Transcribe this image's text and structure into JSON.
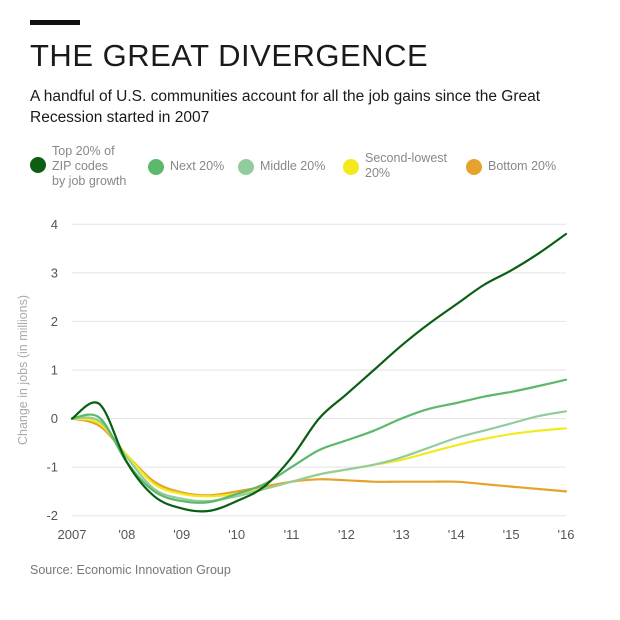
{
  "header": {
    "title": "THE GREAT DIVERGENCE",
    "subtitle": "A handful of U.S. communities account for all the job gains since the Great Recession started in 2007"
  },
  "legend": [
    {
      "label": "Top 20% of ZIP codes by job growth",
      "lines": [
        "Top 20% of",
        "ZIP codes",
        "by job growth"
      ],
      "color": "#0a5f12"
    },
    {
      "label": "Next 20%",
      "lines": [
        "Next 20%"
      ],
      "color": "#5cb86a"
    },
    {
      "label": "Middle 20%",
      "lines": [
        "Middle 20%"
      ],
      "color": "#93cc9c"
    },
    {
      "label": "Second-lowest 20%",
      "lines": [
        "Second-lowest",
        "20%"
      ],
      "color": "#f2ea1d"
    },
    {
      "label": "Bottom 20%",
      "lines": [
        "Bottom 20%"
      ],
      "color": "#e6a32b"
    }
  ],
  "source": "Source: Economic Innovation Group",
  "chart_data": {
    "type": "line",
    "title": "THE GREAT DIVERGENCE",
    "xlabel": "",
    "ylabel": "Change in jobs (in millions)",
    "xlim": [
      2007,
      2016
    ],
    "ylim": [
      -2.5,
      4.5
    ],
    "grid": true,
    "yticks": [
      -2,
      -1,
      0,
      1,
      2,
      3,
      4
    ],
    "ytick_labels": [
      "-2",
      "-1",
      "0",
      "1",
      "2",
      "3",
      "4"
    ],
    "xticks": [
      2007,
      2008,
      2009,
      2010,
      2011,
      2012,
      2013,
      2014,
      2015,
      2016
    ],
    "xtick_labels": [
      "2007",
      "'08",
      "'09",
      "'10",
      "'11",
      "'12",
      "'13",
      "'14",
      "'15",
      "'16"
    ],
    "series": [
      {
        "name": "Top 20% of ZIP codes by job growth",
        "color": "#0a5f12",
        "x": [
          2007,
          2007.5,
          2008,
          2008.5,
          2009,
          2009.5,
          2010,
          2010.5,
          2011,
          2011.5,
          2012,
          2012.5,
          2013,
          2013.5,
          2014,
          2014.5,
          2015,
          2015.5,
          2016
        ],
        "y": [
          0,
          0.3,
          -0.9,
          -1.6,
          -1.85,
          -1.9,
          -1.7,
          -1.4,
          -0.8,
          0.0,
          0.5,
          1.0,
          1.5,
          1.95,
          2.35,
          2.75,
          3.05,
          3.4,
          3.8
        ]
      },
      {
        "name": "Next 20%",
        "color": "#5cb86a",
        "x": [
          2007,
          2007.5,
          2008,
          2008.5,
          2009,
          2009.5,
          2010,
          2010.5,
          2011,
          2011.5,
          2012,
          2012.5,
          2013,
          2013.5,
          2014,
          2014.5,
          2015,
          2015.5,
          2016
        ],
        "y": [
          0,
          0.02,
          -0.9,
          -1.5,
          -1.7,
          -1.72,
          -1.55,
          -1.35,
          -1.0,
          -0.65,
          -0.45,
          -0.25,
          0.0,
          0.2,
          0.32,
          0.45,
          0.55,
          0.67,
          0.8
        ]
      },
      {
        "name": "Middle 20%",
        "color": "#93cc9c",
        "x": [
          2007,
          2007.5,
          2008,
          2008.5,
          2009,
          2009.5,
          2010,
          2010.5,
          2011,
          2011.5,
          2012,
          2012.5,
          2013,
          2013.5,
          2014,
          2014.5,
          2015,
          2015.5,
          2016
        ],
        "y": [
          0,
          -0.05,
          -0.8,
          -1.45,
          -1.65,
          -1.7,
          -1.6,
          -1.45,
          -1.3,
          -1.15,
          -1.05,
          -0.95,
          -0.8,
          -0.6,
          -0.4,
          -0.25,
          -0.1,
          0.05,
          0.15
        ]
      },
      {
        "name": "Second-lowest 20%",
        "color": "#f2ea1d",
        "x": [
          2007,
          2007.5,
          2008,
          2008.5,
          2009,
          2009.5,
          2010,
          2010.5,
          2011,
          2011.5,
          2012,
          2012.5,
          2013,
          2013.5,
          2014,
          2014.5,
          2015,
          2015.5,
          2016
        ],
        "y": [
          0,
          -0.1,
          -0.75,
          -1.35,
          -1.55,
          -1.6,
          -1.55,
          -1.45,
          -1.3,
          -1.15,
          -1.05,
          -0.95,
          -0.85,
          -0.7,
          -0.55,
          -0.42,
          -0.32,
          -0.25,
          -0.2
        ]
      },
      {
        "name": "Bottom 20%",
        "color": "#e6a32b",
        "x": [
          2007,
          2007.5,
          2008,
          2008.5,
          2009,
          2009.5,
          2010,
          2010.5,
          2011,
          2011.5,
          2012,
          2012.5,
          2013,
          2013.5,
          2014,
          2014.5,
          2015,
          2015.5,
          2016
        ],
        "y": [
          0,
          -0.15,
          -0.75,
          -1.3,
          -1.52,
          -1.58,
          -1.5,
          -1.4,
          -1.3,
          -1.25,
          -1.27,
          -1.3,
          -1.3,
          -1.3,
          -1.3,
          -1.35,
          -1.4,
          -1.45,
          -1.5
        ]
      }
    ]
  }
}
